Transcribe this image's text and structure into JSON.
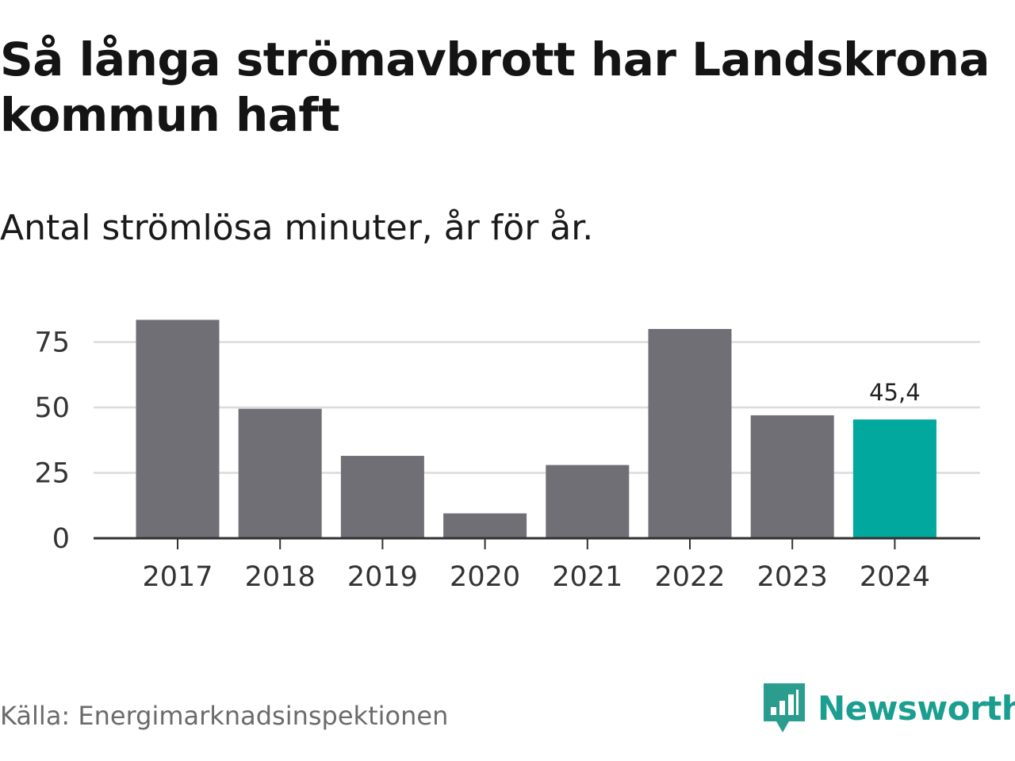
{
  "header": {
    "title": "Så långa strömavbrott har Landskrona kommun haft",
    "subtitle": "Antal strömlösa minuter, år för år."
  },
  "footer": {
    "source": "Källa: Energimarknadsinspektionen",
    "brand": "Newsworthy"
  },
  "colors": {
    "bar": "#706f76",
    "highlight": "#00a89d",
    "grid": "#dcdcdc",
    "axis": "#333333"
  },
  "chart_data": {
    "type": "bar",
    "title": "Så långa strömavbrott har Landskrona kommun haft",
    "subtitle": "Antal strömlösa minuter, år för år.",
    "xlabel": "",
    "ylabel": "",
    "categories": [
      "2017",
      "2018",
      "2019",
      "2020",
      "2021",
      "2022",
      "2023",
      "2024"
    ],
    "values": [
      83.5,
      49.5,
      31.5,
      9.5,
      28,
      80,
      47,
      45.4
    ],
    "highlight_index": 7,
    "highlight_label": "45,4",
    "yticks": [
      0,
      25,
      50,
      75
    ],
    "ylim": [
      0,
      85
    ],
    "grid": true
  }
}
